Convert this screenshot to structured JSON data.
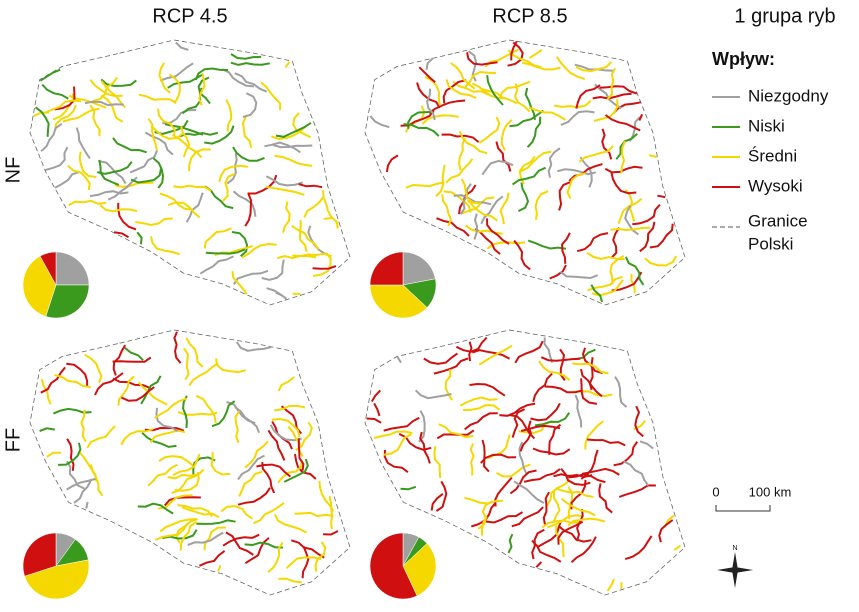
{
  "header": {
    "columns": [
      "RCP 4.5",
      "RCP 8.5"
    ],
    "group": "1 grupa ryb"
  },
  "rows": [
    "NF",
    "FF"
  ],
  "legend": {
    "title": "Wpływ:",
    "items": [
      {
        "label": "Niezgodny",
        "color": "#a0a0a0"
      },
      {
        "label": "Niski",
        "color": "#3a9a1e"
      },
      {
        "label": "Średni",
        "color": "#f5d800"
      },
      {
        "label": "Wysoki",
        "color": "#d01010"
      }
    ],
    "border": [
      "Granice",
      "Polski"
    ]
  },
  "scale": {
    "start": "0",
    "end": "100 km"
  },
  "compass": "N",
  "pies": [
    {
      "values": [
        25,
        30,
        37,
        8
      ]
    },
    {
      "values": [
        22,
        15,
        38,
        25
      ]
    },
    {
      "values": [
        10,
        12,
        48,
        30
      ]
    },
    {
      "values": [
        8,
        5,
        30,
        57
      ]
    }
  ]
}
